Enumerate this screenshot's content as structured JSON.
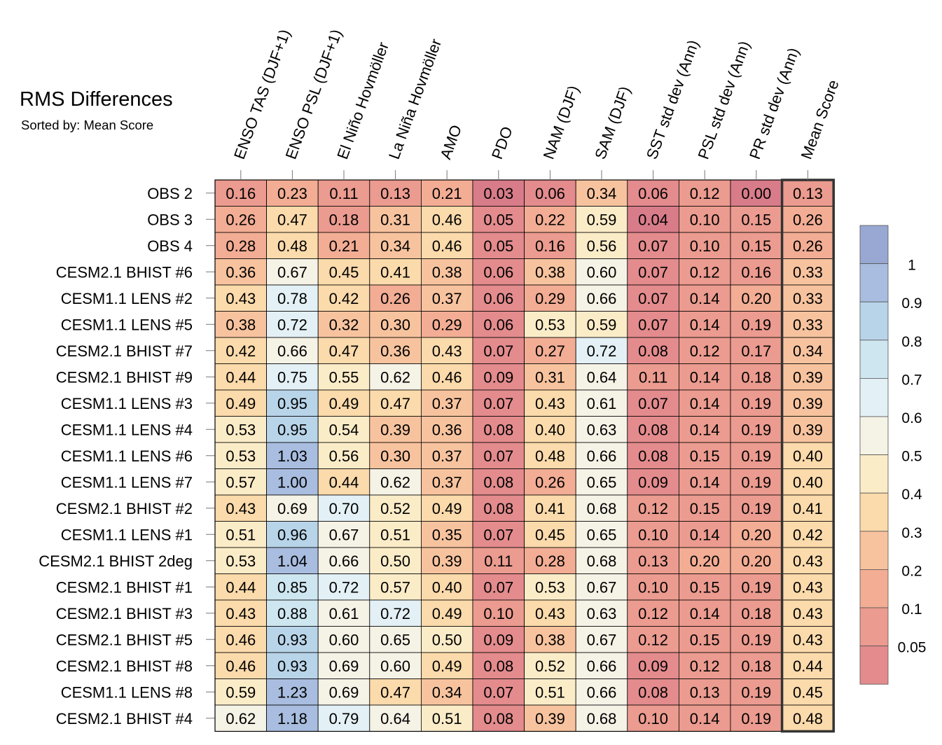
{
  "chart_data": {
    "type": "heatmap",
    "title": "RMS Differences",
    "subtitle": "Sorted by: Mean Score",
    "columns": [
      "ENSO TAS (DJF+1)",
      "ENSO PSL (DJF+1)",
      "El Niño Hovmöller",
      "La Niña Hovmöller",
      "AMO",
      "PDO",
      "NAM (DJF)",
      "SAM (DJF)",
      "SST std dev (Ann)",
      "PSL std dev (Ann)",
      "PR std dev (Ann)",
      "Mean Score"
    ],
    "rows": [
      {
        "label": "OBS 2",
        "values": [
          "0.16",
          "0.23",
          "0.11",
          "0.13",
          "0.21",
          "0.03",
          "0.06",
          "0.34",
          "0.06",
          "0.12",
          "0.00",
          "0.13"
        ]
      },
      {
        "label": "OBS 3",
        "values": [
          "0.26",
          "0.47",
          "0.18",
          "0.31",
          "0.46",
          "0.05",
          "0.22",
          "0.59",
          "0.04",
          "0.10",
          "0.15",
          "0.26"
        ]
      },
      {
        "label": "OBS 4",
        "values": [
          "0.28",
          "0.48",
          "0.21",
          "0.34",
          "0.46",
          "0.05",
          "0.16",
          "0.56",
          "0.07",
          "0.10",
          "0.15",
          "0.26"
        ]
      },
      {
        "label": "CESM2.1 BHIST #6",
        "values": [
          "0.36",
          "0.67",
          "0.45",
          "0.41",
          "0.38",
          "0.06",
          "0.38",
          "0.60",
          "0.07",
          "0.12",
          "0.16",
          "0.33"
        ]
      },
      {
        "label": "CESM1.1 LENS #2",
        "values": [
          "0.43",
          "0.78",
          "0.42",
          "0.26",
          "0.37",
          "0.06",
          "0.29",
          "0.66",
          "0.07",
          "0.14",
          "0.20",
          "0.33"
        ]
      },
      {
        "label": "CESM1.1 LENS #5",
        "values": [
          "0.38",
          "0.72",
          "0.32",
          "0.30",
          "0.29",
          "0.06",
          "0.53",
          "0.59",
          "0.07",
          "0.14",
          "0.19",
          "0.33"
        ]
      },
      {
        "label": "CESM2.1 BHIST #7",
        "values": [
          "0.42",
          "0.66",
          "0.47",
          "0.36",
          "0.43",
          "0.07",
          "0.27",
          "0.72",
          "0.08",
          "0.12",
          "0.17",
          "0.34"
        ]
      },
      {
        "label": "CESM2.1 BHIST #9",
        "values": [
          "0.44",
          "0.75",
          "0.55",
          "0.62",
          "0.46",
          "0.09",
          "0.31",
          "0.64",
          "0.11",
          "0.14",
          "0.18",
          "0.39"
        ]
      },
      {
        "label": "CESM1.1 LENS #3",
        "values": [
          "0.49",
          "0.95",
          "0.49",
          "0.47",
          "0.37",
          "0.07",
          "0.43",
          "0.61",
          "0.07",
          "0.14",
          "0.19",
          "0.39"
        ]
      },
      {
        "label": "CESM1.1 LENS #4",
        "values": [
          "0.53",
          "0.95",
          "0.54",
          "0.39",
          "0.36",
          "0.08",
          "0.40",
          "0.63",
          "0.08",
          "0.14",
          "0.19",
          "0.39"
        ]
      },
      {
        "label": "CESM1.1 LENS #6",
        "values": [
          "0.53",
          "1.03",
          "0.56",
          "0.30",
          "0.37",
          "0.07",
          "0.48",
          "0.66",
          "0.08",
          "0.15",
          "0.19",
          "0.40"
        ]
      },
      {
        "label": "CESM1.1 LENS #7",
        "values": [
          "0.57",
          "1.00",
          "0.44",
          "0.62",
          "0.37",
          "0.08",
          "0.26",
          "0.65",
          "0.09",
          "0.14",
          "0.19",
          "0.40"
        ]
      },
      {
        "label": "CESM2.1 BHIST #2",
        "values": [
          "0.43",
          "0.69",
          "0.70",
          "0.52",
          "0.49",
          "0.08",
          "0.41",
          "0.68",
          "0.12",
          "0.15",
          "0.19",
          "0.41"
        ]
      },
      {
        "label": "CESM1.1 LENS #1",
        "values": [
          "0.51",
          "0.96",
          "0.67",
          "0.51",
          "0.35",
          "0.07",
          "0.45",
          "0.65",
          "0.10",
          "0.14",
          "0.20",
          "0.42"
        ]
      },
      {
        "label": "CESM2.1 BHIST 2deg",
        "values": [
          "0.53",
          "1.04",
          "0.66",
          "0.50",
          "0.39",
          "0.11",
          "0.28",
          "0.68",
          "0.13",
          "0.20",
          "0.20",
          "0.43"
        ]
      },
      {
        "label": "CESM2.1 BHIST #1",
        "values": [
          "0.44",
          "0.85",
          "0.72",
          "0.57",
          "0.40",
          "0.07",
          "0.53",
          "0.67",
          "0.10",
          "0.15",
          "0.19",
          "0.43"
        ]
      },
      {
        "label": "CESM2.1 BHIST #3",
        "values": [
          "0.43",
          "0.88",
          "0.61",
          "0.72",
          "0.49",
          "0.10",
          "0.43",
          "0.63",
          "0.12",
          "0.14",
          "0.18",
          "0.43"
        ]
      },
      {
        "label": "CESM2.1 BHIST #5",
        "values": [
          "0.46",
          "0.93",
          "0.60",
          "0.65",
          "0.50",
          "0.09",
          "0.38",
          "0.67",
          "0.12",
          "0.15",
          "0.19",
          "0.43"
        ]
      },
      {
        "label": "CESM2.1 BHIST #8",
        "values": [
          "0.46",
          "0.93",
          "0.69",
          "0.60",
          "0.49",
          "0.08",
          "0.52",
          "0.66",
          "0.09",
          "0.12",
          "0.18",
          "0.44"
        ]
      },
      {
        "label": "CESM1.1 LENS #8",
        "values": [
          "0.59",
          "1.23",
          "0.69",
          "0.47",
          "0.34",
          "0.07",
          "0.51",
          "0.66",
          "0.08",
          "0.13",
          "0.19",
          "0.45"
        ]
      },
      {
        "label": "CESM2.1 BHIST #4",
        "values": [
          "0.62",
          "1.18",
          "0.79",
          "0.64",
          "0.51",
          "0.08",
          "0.39",
          "0.68",
          "0.10",
          "0.14",
          "0.19",
          "0.48"
        ]
      }
    ],
    "colorbar": {
      "tick_labels": [
        "1",
        "0.9",
        "0.8",
        "0.7",
        "0.6",
        "0.5",
        "0.4",
        "0.3",
        "0.2",
        "0.1",
        "0.05"
      ],
      "levels": [
        0.05,
        0.1,
        0.2,
        0.3,
        0.4,
        0.5,
        0.6,
        0.7,
        0.8,
        0.9,
        1
      ],
      "colors": [
        "#d87c8a",
        "#e38b8d",
        "#eb9b8f",
        "#f2ad94",
        "#f7c39e",
        "#fbdaab",
        "#fbecc8",
        "#f5f2e6",
        "#e3f0f5",
        "#cee6f0",
        "#b8d4e9",
        "#a8bddf",
        "#98a8d2"
      ]
    }
  }
}
